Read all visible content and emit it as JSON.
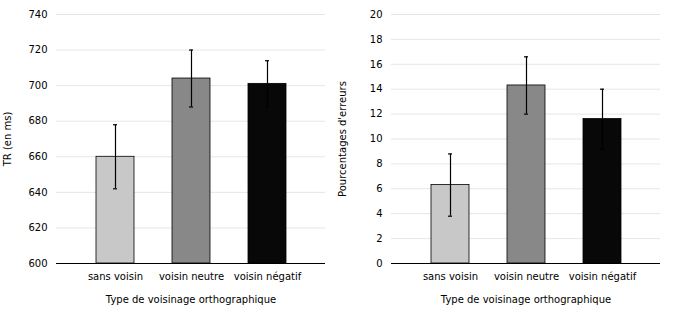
{
  "chart_data": [
    {
      "type": "bar",
      "categories": [
        "sans voisin",
        "voisin neutre",
        "voisin négatif"
      ],
      "values": [
        660,
        704,
        701
      ],
      "errors": [
        18,
        16,
        13
      ],
      "colors": [
        "#c8c8c8",
        "#888888",
        "#080808"
      ],
      "xlabel": "Type de voisinage orthographique",
      "ylabel": "TR (en ms)",
      "ylim": [
        600,
        740
      ],
      "yticks": [
        600,
        620,
        640,
        660,
        680,
        700,
        720,
        740
      ],
      "grid": true
    },
    {
      "type": "bar",
      "categories": [
        "sans voisin",
        "voisin neutre",
        "voisin négatif"
      ],
      "values": [
        6.3,
        14.3,
        11.6
      ],
      "errors": [
        2.5,
        2.3,
        2.4
      ],
      "colors": [
        "#c8c8c8",
        "#888888",
        "#080808"
      ],
      "xlabel": "Type de voisinage orthographique",
      "ylabel": "Pourcentages d'erreurs",
      "ylim": [
        0,
        20
      ],
      "yticks": [
        0,
        2,
        4,
        6,
        8,
        10,
        12,
        14,
        16,
        18,
        20
      ],
      "grid": true
    }
  ]
}
